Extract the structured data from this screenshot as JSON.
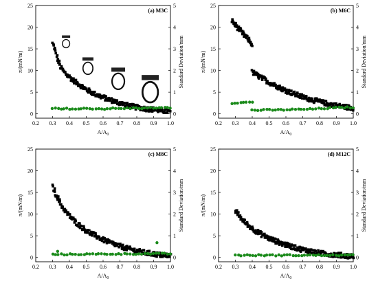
{
  "chart_data": [
    {
      "type": "scatter",
      "panel_label": "(a) M3C",
      "xlabel": "A/A",
      "xlabel_sub": "0",
      "ylabel": "π/(mN/m)",
      "y2label": "Standard Deviation/mm",
      "xlim": [
        0.2,
        1.0
      ],
      "ylim": [
        -1,
        25
      ],
      "y2lim": [
        -0.2,
        5
      ],
      "xticks": [
        "0.2",
        "0.3",
        "0.4",
        "0.5",
        "0.6",
        "0.7",
        "0.8",
        "0.9",
        "1.0"
      ],
      "yticks": [
        "0",
        "5",
        "10",
        "15",
        "20",
        "25"
      ],
      "y2ticks": [
        "0",
        "1",
        "2",
        "3",
        "4",
        "5"
      ],
      "series": [
        {
          "role": "surface_pressure",
          "axis": "left",
          "color": "#000000",
          "marker": "square",
          "x": [
            0.3,
            0.31,
            0.32,
            0.33,
            0.34,
            0.35,
            0.37,
            0.4,
            0.43,
            0.46,
            0.5,
            0.55,
            0.6,
            0.65,
            0.7,
            0.75,
            0.8,
            0.85,
            0.9,
            0.95,
            1.0
          ],
          "y": [
            16.2,
            15.2,
            14.0,
            12.6,
            11.6,
            10.6,
            9.6,
            8.5,
            7.5,
            6.7,
            5.6,
            4.6,
            3.8,
            3.1,
            2.5,
            1.9,
            1.5,
            1.2,
            1.0,
            0.7,
            0.5
          ]
        },
        {
          "role": "standard_deviation",
          "axis": "right",
          "color": "#1a8a1a",
          "marker": "circle",
          "x": [
            0.3,
            0.35,
            0.4,
            0.45,
            0.5,
            0.55,
            0.6,
            0.65,
            0.7,
            0.75,
            0.8,
            0.85,
            0.9,
            0.95,
            1.0
          ],
          "y": [
            0.25,
            0.22,
            0.24,
            0.22,
            0.25,
            0.24,
            0.23,
            0.25,
            0.24,
            0.26,
            0.27,
            0.26,
            0.28,
            0.27,
            0.28
          ]
        }
      ],
      "droplets": [
        {
          "x": 0.38,
          "y": 16.2,
          "scale": 0.6
        },
        {
          "x": 0.51,
          "y": 10.5,
          "scale": 0.8
        },
        {
          "x": 0.69,
          "y": 7.5,
          "scale": 1.0
        },
        {
          "x": 0.88,
          "y": 5.0,
          "scale": 1.25
        }
      ]
    },
    {
      "type": "scatter",
      "panel_label": "(b) M6C",
      "xlabel": "A/A",
      "xlabel_sub": "0",
      "ylabel": "π/(mN/m)",
      "y2label": "Standard Deviation/mm",
      "xlim": [
        0.2,
        1.0
      ],
      "ylim": [
        -1,
        25
      ],
      "y2lim": [
        -0.2,
        5
      ],
      "xticks": [
        "0.2",
        "0.3",
        "0.4",
        "0.5",
        "0.6",
        "0.7",
        "0.8",
        "0.9",
        "1.0"
      ],
      "yticks": [
        "0",
        "5",
        "10",
        "15",
        "20",
        "25"
      ],
      "y2ticks": [
        "0",
        "1",
        "2",
        "3",
        "4",
        "5"
      ],
      "series": [
        {
          "role": "surface_pressure_upper",
          "axis": "left",
          "color": "#000000",
          "marker": "square",
          "x": [
            0.28,
            0.3,
            0.32,
            0.34,
            0.36,
            0.38,
            0.4
          ],
          "y": [
            21.5,
            20.5,
            19.6,
            18.7,
            17.8,
            17.0,
            16.0
          ]
        },
        {
          "role": "surface_pressure_lower",
          "axis": "left",
          "color": "#000000",
          "marker": "square",
          "x": [
            0.4,
            0.43,
            0.46,
            0.5,
            0.55,
            0.6,
            0.65,
            0.7,
            0.75,
            0.8,
            0.85,
            0.9,
            0.95,
            1.0
          ],
          "y": [
            9.6,
            8.9,
            8.2,
            7.3,
            6.3,
            5.4,
            4.6,
            3.9,
            3.3,
            2.8,
            2.3,
            1.9,
            1.6,
            1.3
          ]
        },
        {
          "role": "standard_deviation_upper",
          "axis": "right",
          "color": "#1a8a1a",
          "marker": "circle",
          "x": [
            0.28,
            0.31,
            0.34,
            0.37,
            0.4
          ],
          "y": [
            0.5,
            0.52,
            0.51,
            0.53,
            0.55
          ]
        },
        {
          "role": "standard_deviation_lower",
          "axis": "right",
          "color": "#1a8a1a",
          "marker": "circle",
          "x": [
            0.4,
            0.45,
            0.5,
            0.55,
            0.6,
            0.65,
            0.7,
            0.75,
            0.8,
            0.85,
            0.9,
            0.95,
            1.0
          ],
          "y": [
            0.17,
            0.17,
            0.18,
            0.18,
            0.19,
            0.2,
            0.21,
            0.22,
            0.24,
            0.26,
            0.28,
            0.29,
            0.3
          ]
        }
      ]
    },
    {
      "type": "scatter",
      "panel_label": "(c) M8C",
      "xlabel": "A/A",
      "xlabel_sub": "0",
      "ylabel": "π/(mN/m)",
      "y2label": "Standard Deviation/mm",
      "xlim": [
        0.2,
        1.0
      ],
      "ylim": [
        -1,
        25
      ],
      "y2lim": [
        -0.2,
        5
      ],
      "xticks": [
        "0.2",
        "0.3",
        "0.4",
        "0.5",
        "0.6",
        "0.7",
        "0.8",
        "0.9",
        "1.0"
      ],
      "yticks": [
        "0",
        "5",
        "10",
        "15",
        "20",
        "25"
      ],
      "y2ticks": [
        "0",
        "1",
        "2",
        "3",
        "4",
        "5"
      ],
      "series": [
        {
          "role": "surface_pressure",
          "axis": "left",
          "color": "#000000",
          "marker": "square",
          "x": [
            0.3,
            0.31,
            0.32,
            0.33,
            0.34,
            0.35,
            0.37,
            0.4,
            0.43,
            0.46,
            0.5,
            0.55,
            0.6,
            0.65,
            0.7,
            0.75,
            0.8,
            0.85,
            0.9,
            0.95,
            1.0
          ],
          "y": [
            16.3,
            15.6,
            14.6,
            13.8,
            13.0,
            12.2,
            11.0,
            9.6,
            8.4,
            7.4,
            6.2,
            5.1,
            4.1,
            3.3,
            2.6,
            2.0,
            1.5,
            1.1,
            0.8,
            0.5,
            0.4
          ]
        },
        {
          "role": "standard_deviation",
          "axis": "right",
          "color": "#1a8a1a",
          "marker": "circle",
          "x": [
            0.3,
            0.35,
            0.4,
            0.45,
            0.5,
            0.55,
            0.6,
            0.65,
            0.7,
            0.75,
            0.8,
            0.85,
            0.9,
            0.95,
            1.0
          ],
          "y": [
            0.14,
            0.14,
            0.14,
            0.15,
            0.15,
            0.15,
            0.16,
            0.16,
            0.16,
            0.16,
            0.17,
            0.17,
            0.17,
            0.17,
            0.17
          ]
        },
        {
          "role": "outliers",
          "axis": "right",
          "color": "#1a8a1a",
          "marker": "circle",
          "x": [
            0.33,
            0.92
          ],
          "y": [
            0.28,
            0.68
          ]
        }
      ]
    },
    {
      "type": "scatter",
      "panel_label": "(d) M12C",
      "xlabel": "A/A",
      "xlabel_sub": "0",
      "ylabel": "π/(mN/m)",
      "y2label": "Standard Deviation/mm",
      "xlim": [
        0.2,
        1.0
      ],
      "ylim": [
        -1,
        25
      ],
      "y2lim": [
        -0.2,
        5
      ],
      "xticks": [
        "0.2",
        "0.3",
        "0.4",
        "0.5",
        "0.6",
        "0.7",
        "0.8",
        "0.9",
        "1.0"
      ],
      "yticks": [
        "0",
        "5",
        "10",
        "15",
        "20",
        "25"
      ],
      "y2ticks": [
        "0",
        "1",
        "2",
        "3",
        "4",
        "5"
      ],
      "series": [
        {
          "role": "surface_pressure",
          "axis": "left",
          "color": "#000000",
          "marker": "square",
          "x": [
            0.3,
            0.31,
            0.32,
            0.33,
            0.34,
            0.35,
            0.37,
            0.4,
            0.43,
            0.46,
            0.5,
            0.55,
            0.6,
            0.65,
            0.7,
            0.75,
            0.8,
            0.85,
            0.9,
            0.95,
            1.0
          ],
          "y": [
            10.7,
            10.3,
            9.8,
            9.3,
            8.8,
            8.4,
            7.6,
            6.7,
            5.9,
            5.2,
            4.4,
            3.6,
            2.9,
            2.3,
            1.8,
            1.4,
            1.0,
            0.8,
            0.6,
            0.4,
            0.3
          ]
        },
        {
          "role": "standard_deviation",
          "axis": "right",
          "color": "#1a8a1a",
          "marker": "circle",
          "x": [
            0.3,
            0.35,
            0.4,
            0.45,
            0.5,
            0.55,
            0.6,
            0.65,
            0.7,
            0.75,
            0.8,
            0.85,
            0.9,
            0.95,
            1.0
          ],
          "y": [
            0.1,
            0.1,
            0.1,
            0.1,
            0.1,
            0.1,
            0.1,
            0.1,
            0.1,
            0.1,
            0.1,
            0.1,
            0.1,
            0.1,
            0.1
          ]
        }
      ]
    }
  ]
}
